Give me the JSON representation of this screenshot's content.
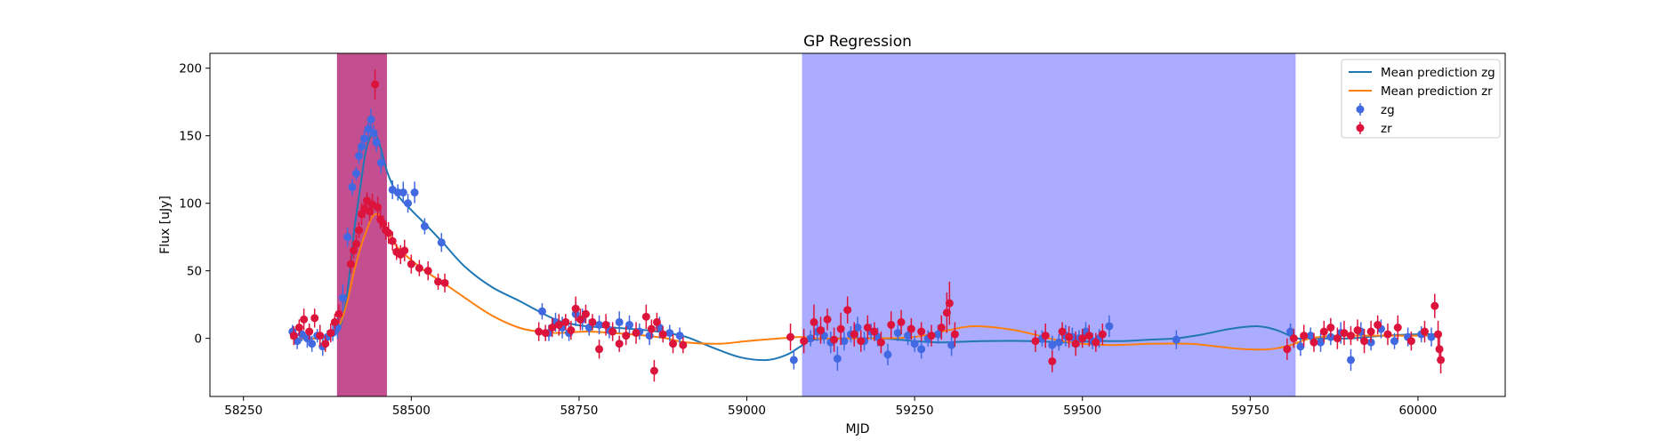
{
  "chart_data": {
    "type": "scatter",
    "title": "GP Regression",
    "xlabel": "MJD",
    "ylabel": "Flux [uJy]",
    "xlim": [
      58200,
      60130
    ],
    "ylim": [
      -43,
      211
    ],
    "xticks": [
      58250,
      58500,
      58750,
      59000,
      59250,
      59500,
      59750,
      60000
    ],
    "yticks": [
      0,
      50,
      100,
      150,
      200
    ],
    "grid": false,
    "legend_position": "top-right",
    "colors": {
      "zg": "#4169e1",
      "zr": "#dc143c",
      "mean_zg": "#1f77b4",
      "mean_zr": "#ff7f0e",
      "span_red": "#c0468a",
      "span_blue": "#a6a6ff"
    },
    "shaded_regions": [
      {
        "x0": 58390,
        "x1": 58463,
        "color": "#c0468a"
      },
      {
        "x0": 59083,
        "x1": 59817,
        "color": "#a6a6ff"
      }
    ],
    "series": [
      {
        "name": "Mean prediction zg",
        "kind": "line",
        "x": [
          58320,
          58360,
          58385,
          58395,
          58405,
          58415,
          58425,
          58432,
          58440,
          58448,
          58455,
          58465,
          58480,
          58500,
          58520,
          58545,
          58580,
          58620,
          58660,
          58690,
          58720,
          58760,
          58800,
          58850,
          58880,
          58910,
          58950,
          58990,
          59030,
          59060,
          59080,
          59100,
          59150,
          59200,
          59250,
          59290,
          59350,
          59420,
          59480,
          59520,
          59560,
          59600,
          59640,
          59680,
          59720,
          59760,
          59790,
          59820,
          59850,
          59900,
          59950,
          60000,
          60030
        ],
        "y": [
          0,
          0,
          3,
          10,
          35,
          80,
          115,
          138,
          150,
          150,
          140,
          122,
          106,
          95,
          85,
          72,
          53,
          38,
          28,
          20,
          13,
          9,
          8,
          6,
          4,
          1,
          -7,
          -14,
          -16,
          -12,
          -6,
          -1,
          0,
          0,
          -2,
          -3,
          -2,
          -2,
          -3,
          -2,
          -2,
          -1,
          0,
          3,
          7,
          9,
          6,
          0,
          0,
          0,
          2,
          3,
          3
        ]
      },
      {
        "name": "Mean prediction zr",
        "kind": "line",
        "x": [
          58320,
          58360,
          58385,
          58395,
          58405,
          58415,
          58425,
          58435,
          58442,
          58450,
          58458,
          58466,
          58480,
          58500,
          58520,
          58545,
          58580,
          58620,
          58660,
          58690,
          58720,
          58760,
          58800,
          58850,
          58880,
          58910,
          58960,
          59000,
          59050,
          59080,
          59100,
          59150,
          59200,
          59250,
          59300,
          59340,
          59400,
          59460,
          59500,
          59550,
          59600,
          59660,
          59700,
          59740,
          59780,
          59810,
          59840,
          59880,
          59930,
          59980,
          60030
        ],
        "y": [
          0,
          0,
          3,
          12,
          28,
          50,
          68,
          82,
          90,
          92,
          87,
          78,
          67,
          58,
          50,
          42,
          30,
          17,
          8,
          5,
          4,
          5,
          4,
          2,
          0,
          -3,
          -4,
          -2,
          0,
          1,
          0,
          0,
          0,
          1,
          6,
          9,
          6,
          -1,
          -4,
          -5,
          -4,
          -4,
          -6,
          -8,
          -8,
          -5,
          0,
          2,
          2,
          2,
          2
        ]
      },
      {
        "name": "zg",
        "kind": "errorbar",
        "x": [
          58323,
          58330,
          58337,
          58345,
          58352,
          58360,
          58368,
          58375,
          58383,
          58390,
          58398,
          58405,
          58412,
          58418,
          58422,
          58426,
          58430,
          58436,
          58440,
          58444,
          58448,
          58455,
          58472,
          58480,
          58488,
          58495,
          58505,
          58520,
          58545,
          58695,
          58705,
          58715,
          58725,
          58735,
          58745,
          58755,
          58765,
          58780,
          58795,
          58810,
          58825,
          58840,
          58855,
          58870,
          58885,
          58900,
          59070,
          59095,
          59105,
          59115,
          59125,
          59135,
          59145,
          59155,
          59165,
          59175,
          59185,
          59195,
          59210,
          59225,
          59240,
          59250,
          59260,
          59270,
          59285,
          59305,
          59440,
          59455,
          59465,
          59475,
          59485,
          59495,
          59505,
          59515,
          59525,
          59540,
          59640,
          59810,
          59825,
          59840,
          59855,
          59870,
          59885,
          59900,
          59915,
          59930,
          59945,
          59965,
          59985,
          60005,
          60020
        ],
        "y": [
          5,
          -2,
          3,
          0,
          -4,
          2,
          -6,
          1,
          4,
          8,
          30,
          75,
          112,
          122,
          135,
          142,
          148,
          155,
          162,
          152,
          145,
          130,
          110,
          108,
          108,
          100,
          108,
          83,
          71,
          20,
          4,
          12,
          8,
          4,
          18,
          14,
          8,
          10,
          6,
          12,
          10,
          5,
          2,
          8,
          4,
          2,
          -16,
          0,
          5,
          2,
          -3,
          -15,
          -2,
          3,
          8,
          -2,
          5,
          1,
          -12,
          4,
          2,
          -4,
          -8,
          0,
          3,
          -5,
          0,
          -5,
          -3,
          2,
          1,
          0,
          5,
          -2,
          0,
          9,
          -1,
          5,
          -6,
          2,
          -3,
          1,
          4,
          -16,
          5,
          -3,
          7,
          -2,
          1,
          3,
          1
        ],
        "err": [
          5,
          6,
          5,
          7,
          6,
          5,
          7,
          5,
          6,
          8,
          10,
          7,
          6,
          5,
          6,
          5,
          6,
          7,
          8,
          6,
          7,
          8,
          7,
          6,
          8,
          7,
          8,
          6,
          7,
          6,
          6,
          7,
          8,
          6,
          9,
          8,
          6,
          7,
          6,
          8,
          7,
          6,
          7,
          8,
          6,
          6,
          7,
          6,
          7,
          6,
          8,
          9,
          7,
          6,
          8,
          7,
          6,
          7,
          8,
          6,
          7,
          6,
          7,
          6,
          7,
          8,
          6,
          7,
          6,
          8,
          7,
          6,
          7,
          6,
          7,
          8,
          7,
          6,
          7,
          6,
          7,
          6,
          8,
          8,
          7,
          6,
          7,
          6,
          7,
          6,
          7
        ]
      },
      {
        "name": "zr",
        "kind": "errorbar",
        "x": [
          58325,
          58333,
          58340,
          58348,
          58356,
          58364,
          58372,
          58380,
          58386,
          58392,
          58410,
          58414,
          58418,
          58422,
          58426,
          58430,
          58434,
          58438,
          58442,
          58446,
          58450,
          58454,
          58458,
          58462,
          58466,
          58472,
          58478,
          58484,
          58490,
          58500,
          58512,
          58525,
          58540,
          58550,
          58690,
          58700,
          58710,
          58720,
          58730,
          58738,
          58745,
          58752,
          58760,
          58770,
          58780,
          58790,
          58800,
          58810,
          58820,
          58835,
          58850,
          58858,
          58862,
          58866,
          58875,
          58890,
          58905,
          59065,
          59085,
          59100,
          59110,
          59120,
          59130,
          59140,
          59150,
          59160,
          59170,
          59180,
          59190,
          59200,
          59215,
          59230,
          59245,
          59260,
          59275,
          59290,
          59298,
          59302,
          59310,
          59430,
          59445,
          59455,
          59470,
          59480,
          59490,
          59500,
          59510,
          59520,
          59530,
          59805,
          59815,
          59830,
          59845,
          59860,
          59870,
          59880,
          59890,
          59900,
          59910,
          59920,
          59930,
          59940,
          59955,
          59970,
          59990,
          60010,
          60025,
          60030,
          60032,
          60034
        ],
        "y": [
          2,
          8,
          14,
          5,
          15,
          2,
          -4,
          4,
          12,
          18,
          55,
          65,
          70,
          80,
          92,
          96,
          102,
          94,
          99,
          188,
          97,
          88,
          85,
          80,
          78,
          72,
          64,
          62,
          65,
          55,
          52,
          50,
          42,
          41,
          5,
          4,
          8,
          10,
          12,
          6,
          22,
          14,
          18,
          12,
          -8,
          10,
          5,
          -4,
          2,
          4,
          16,
          7,
          -24,
          12,
          3,
          -4,
          -5,
          1,
          -2,
          12,
          6,
          14,
          -1,
          7,
          21,
          3,
          -2,
          8,
          5,
          -3,
          10,
          12,
          7,
          5,
          2,
          8,
          19,
          26,
          3,
          -2,
          2,
          -17,
          5,
          1,
          -4,
          0,
          2,
          -3,
          3,
          -8,
          0,
          2,
          -3,
          5,
          8,
          0,
          4,
          2,
          6,
          -2,
          5,
          10,
          3,
          8,
          -2,
          5,
          24,
          3,
          -8,
          -16
        ],
        "err": [
          7,
          6,
          8,
          6,
          7,
          8,
          6,
          7,
          6,
          7,
          7,
          6,
          7,
          6,
          8,
          7,
          6,
          7,
          8,
          11,
          8,
          7,
          6,
          7,
          8,
          7,
          6,
          7,
          8,
          7,
          6,
          7,
          6,
          7,
          7,
          6,
          7,
          8,
          6,
          7,
          9,
          8,
          7,
          6,
          7,
          8,
          7,
          6,
          7,
          8,
          9,
          7,
          8,
          7,
          6,
          7,
          6,
          10,
          9,
          13,
          10,
          8,
          9,
          12,
          10,
          9,
          8,
          9,
          7,
          8,
          10,
          9,
          8,
          7,
          8,
          9,
          15,
          16,
          9,
          8,
          9,
          8,
          7,
          8,
          9,
          7,
          8,
          7,
          8,
          8,
          7,
          8,
          7,
          8,
          7,
          8,
          9,
          7,
          8,
          9,
          8,
          7,
          8,
          9,
          7,
          8,
          9,
          10,
          9,
          10
        ]
      }
    ]
  }
}
